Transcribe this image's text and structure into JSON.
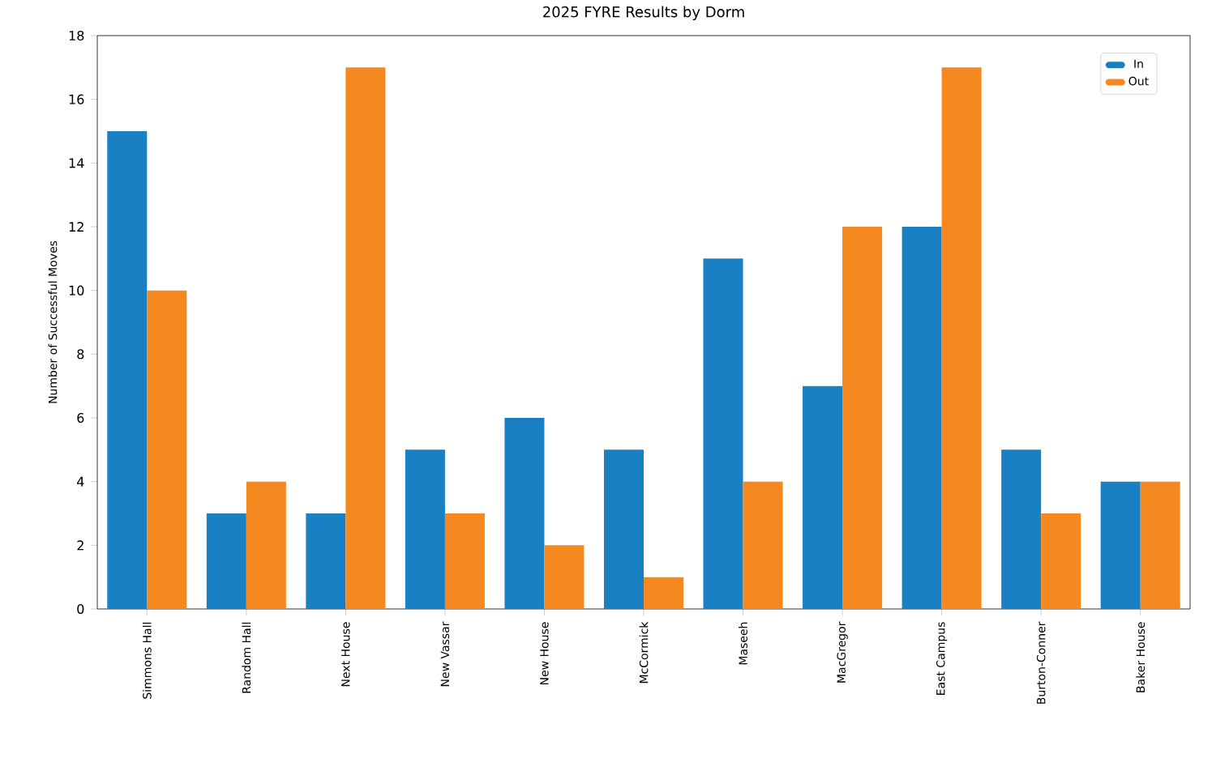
{
  "chart_data": {
    "type": "bar",
    "title": "2025 FYRE Results by Dorm",
    "ylabel": "Number of Successful Moves",
    "categories": [
      "Simmons Hall",
      "Random Hall",
      "Next House",
      "New Vassar",
      "New House",
      "McCormick",
      "Maseeh",
      "MacGregor",
      "East Campus",
      "Burton-Conner",
      "Baker House"
    ],
    "series": [
      {
        "name": "In",
        "color": "#1a80c4",
        "values": [
          15,
          3,
          3,
          5,
          6,
          5,
          11,
          7,
          12,
          5,
          4
        ]
      },
      {
        "name": "Out",
        "color": "#f5891f",
        "values": [
          10,
          4,
          17,
          3,
          2,
          1,
          4,
          12,
          17,
          3,
          4
        ]
      }
    ],
    "ylim": [
      0,
      18
    ],
    "yticks": [
      0,
      2,
      4,
      6,
      8,
      10,
      12,
      14,
      16,
      18
    ],
    "legend": "top right",
    "grid": false
  }
}
